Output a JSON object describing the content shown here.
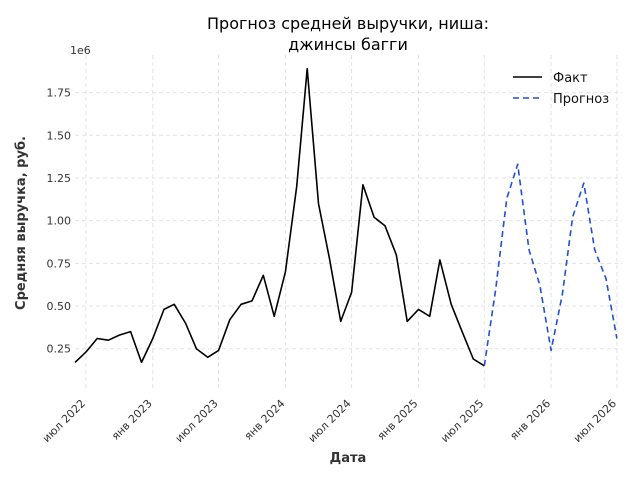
{
  "chart_data": {
    "type": "line",
    "title_lines": [
      "Прогноз средней выручки, ниша:",
      "джинсы багги"
    ],
    "xlabel": "Дата",
    "ylabel": "Средняя выручка, руб.",
    "y_offset_label": "1e6",
    "x_range": [
      "2022-06-01",
      "2026-07-15"
    ],
    "ylim": [
      0.02,
      1.97
    ],
    "y_ticks": [
      0.25,
      0.5,
      0.75,
      1.0,
      1.25,
      1.5,
      1.75
    ],
    "y_tick_labels": [
      "0.25",
      "0.50",
      "0.75",
      "1.00",
      "1.25",
      "1.50",
      "1.75"
    ],
    "x_ticks": [
      "2022-07-01",
      "2023-01-01",
      "2023-07-01",
      "2024-01-01",
      "2024-07-01",
      "2025-01-01",
      "2025-07-01",
      "2026-01-01",
      "2026-07-01"
    ],
    "x_tick_labels": [
      "июл 2022",
      "янв 2023",
      "июл 2023",
      "янв 2024",
      "июл 2024",
      "янв 2025",
      "июл 2025",
      "янв 2026",
      "июл 2026"
    ],
    "grid": true,
    "legend_position": "top-right",
    "series": [
      {
        "name": "Факт",
        "color": "#000000",
        "dash": false,
        "x": [
          "2022-06-01",
          "2022-07-01",
          "2022-08-01",
          "2022-09-01",
          "2022-10-01",
          "2022-11-01",
          "2022-12-01",
          "2023-01-01",
          "2023-02-01",
          "2023-03-01",
          "2023-04-01",
          "2023-05-01",
          "2023-06-01",
          "2023-07-01",
          "2023-08-01",
          "2023-09-01",
          "2023-10-01",
          "2023-11-01",
          "2023-12-01",
          "2024-01-01",
          "2024-02-01",
          "2024-03-01",
          "2024-04-01",
          "2024-05-01",
          "2024-06-01",
          "2024-07-01",
          "2024-08-01",
          "2024-09-01",
          "2024-10-01",
          "2024-11-01",
          "2024-12-01",
          "2025-01-01",
          "2025-02-01",
          "2025-03-01",
          "2025-04-01",
          "2025-05-01",
          "2025-06-01",
          "2025-07-01"
        ],
        "y": [
          0.17,
          0.23,
          0.31,
          0.3,
          0.33,
          0.35,
          0.17,
          0.31,
          0.48,
          0.51,
          0.4,
          0.25,
          0.2,
          0.24,
          0.42,
          0.51,
          0.53,
          0.68,
          0.44,
          0.7,
          1.2,
          1.89,
          1.1,
          0.78,
          0.41,
          0.58,
          1.21,
          1.02,
          0.97,
          0.8,
          0.41,
          0.48,
          0.44,
          0.77,
          0.51,
          0.35,
          0.19,
          0.15
        ]
      },
      {
        "name": "Прогноз",
        "color": "#1f4fd6",
        "dash": true,
        "x": [
          "2025-07-01",
          "2025-08-01",
          "2025-09-01",
          "2025-10-01",
          "2025-11-01",
          "2025-12-01",
          "2026-01-01",
          "2026-02-01",
          "2026-03-01",
          "2026-04-01",
          "2026-05-01",
          "2026-06-01",
          "2026-07-01"
        ],
        "y": [
          0.15,
          0.59,
          1.13,
          1.33,
          0.83,
          0.62,
          0.24,
          0.57,
          1.02,
          1.22,
          0.83,
          0.66,
          0.31
        ]
      }
    ]
  }
}
